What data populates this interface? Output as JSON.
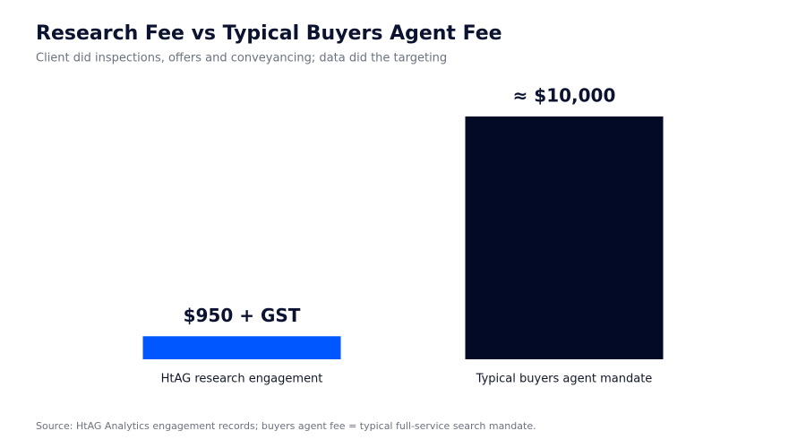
{
  "chart_data": {
    "type": "bar",
    "title": "Research Fee vs Typical Buyers Agent Fee",
    "subtitle": "Client did inspections, offers and conveyancing; data did the targeting",
    "categories": [
      "HtAG research engagement",
      "Typical buyers agent mandate"
    ],
    "values": [
      950,
      10000
    ],
    "value_labels": [
      "$950 + GST",
      "≈ $10,000"
    ],
    "colors": [
      "#0057ff",
      "#020a26"
    ],
    "source": "Source: HtAG Analytics engagement records; buyers agent fee = typical full-service search mandate."
  }
}
